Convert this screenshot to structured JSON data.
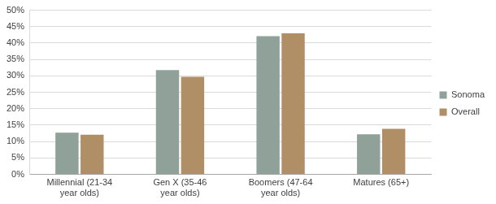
{
  "chart_data": {
    "type": "bar",
    "categories": [
      [
        "Millennial (21-34",
        "year olds)"
      ],
      [
        "Gen X (35-46",
        "year olds)"
      ],
      [
        "Boomers (47-64",
        "year olds)"
      ],
      [
        "Matures (65+)"
      ]
    ],
    "series": [
      {
        "name": "Sonoma",
        "color": "#8fa198",
        "values": [
          12.7,
          31.8,
          42.1,
          12.2
        ]
      },
      {
        "name": "Overall",
        "color": "#b08f66",
        "values": [
          12.1,
          29.7,
          43.0,
          13.9
        ]
      }
    ],
    "ylim": [
      0,
      50
    ],
    "yticks": [
      {
        "value": 0,
        "label": "0%"
      },
      {
        "value": 5,
        "label": "5%"
      },
      {
        "value": 10,
        "label": "10%"
      },
      {
        "value": 15,
        "label": "15%"
      },
      {
        "value": 20,
        "label": "20%"
      },
      {
        "value": 25,
        "label": "25%"
      },
      {
        "value": 30,
        "label": "30%"
      },
      {
        "value": 35,
        "label": "35%"
      },
      {
        "value": 40,
        "label": "40%"
      },
      {
        "value": 45,
        "label": "45%"
      },
      {
        "value": 50,
        "label": "50%"
      }
    ],
    "grid": true,
    "legend": "right"
  }
}
